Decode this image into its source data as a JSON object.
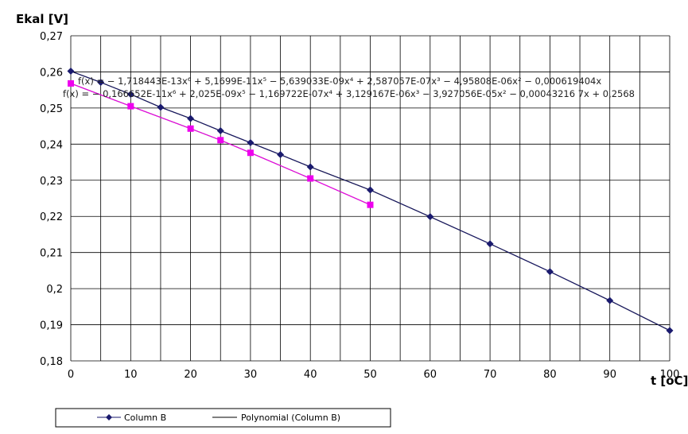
{
  "chart_data": {
    "type": "line",
    "ylabel": "Ekal [V]",
    "xlabel": "t [oC]",
    "xlim": [
      0,
      100
    ],
    "ylim": [
      0.18,
      0.27
    ],
    "x_ticks": [
      0,
      10,
      20,
      30,
      40,
      50,
      60,
      70,
      80,
      90,
      100
    ],
    "x_tick_labels": [
      "0",
      "10",
      "20",
      "30",
      "40",
      "50",
      "60",
      "70",
      "80",
      "90",
      "100"
    ],
    "y_ticks": [
      0.18,
      0.19,
      0.2,
      0.21,
      0.22,
      0.23,
      0.24,
      0.25,
      0.26,
      0.27
    ],
    "y_tick_labels": [
      "0,18",
      "0,19",
      "0,2",
      "0,21",
      "0,22",
      "0,23",
      "0,24",
      "0,25",
      "0,26",
      "0,27"
    ],
    "grid": true,
    "legend_position": "bottom-left",
    "series": [
      {
        "name": "Column B",
        "color": "#1a1a6e",
        "marker": "diamond",
        "x": [
          0,
          5,
          10,
          15,
          20,
          25,
          30,
          35,
          40,
          50,
          60,
          70,
          80,
          90,
          100
        ],
        "y": [
          0.2602,
          0.2571,
          0.2538,
          0.2502,
          0.2471,
          0.2437,
          0.2404,
          0.2371,
          0.2337,
          0.2273,
          0.2199,
          0.2124,
          0.2047,
          0.1967,
          0.1884
        ]
      },
      {
        "name": "",
        "color": "#ee00ee",
        "marker": "square",
        "x": [
          0,
          10,
          20,
          25,
          30,
          40,
          50
        ],
        "y": [
          0.2568,
          0.2505,
          0.2443,
          0.2411,
          0.2376,
          0.2305,
          0.2232
        ]
      }
    ],
    "trendlines": [
      {
        "name": "Polynomial (Column B)",
        "color": "#000000",
        "of_series": 0
      },
      {
        "name": "",
        "color": "#8a1e6a",
        "of_series": 1
      }
    ],
    "annotations": [
      "f(x) = − 1,718443E-13x⁶ + 5,1699E-11x⁵ − 5,639033E-09x⁴ + 2,587057E-07x³ − 4,95808E-06x² − 0,000619404x",
      "f(x) = − 0,166652E-11x⁶ + 2,025E-09x⁵ − 1,169722E-07x⁴ + 3,129167E-06x³ − 3,927056E-05x² − 0,00043216 7x + 0,2568"
    ]
  }
}
